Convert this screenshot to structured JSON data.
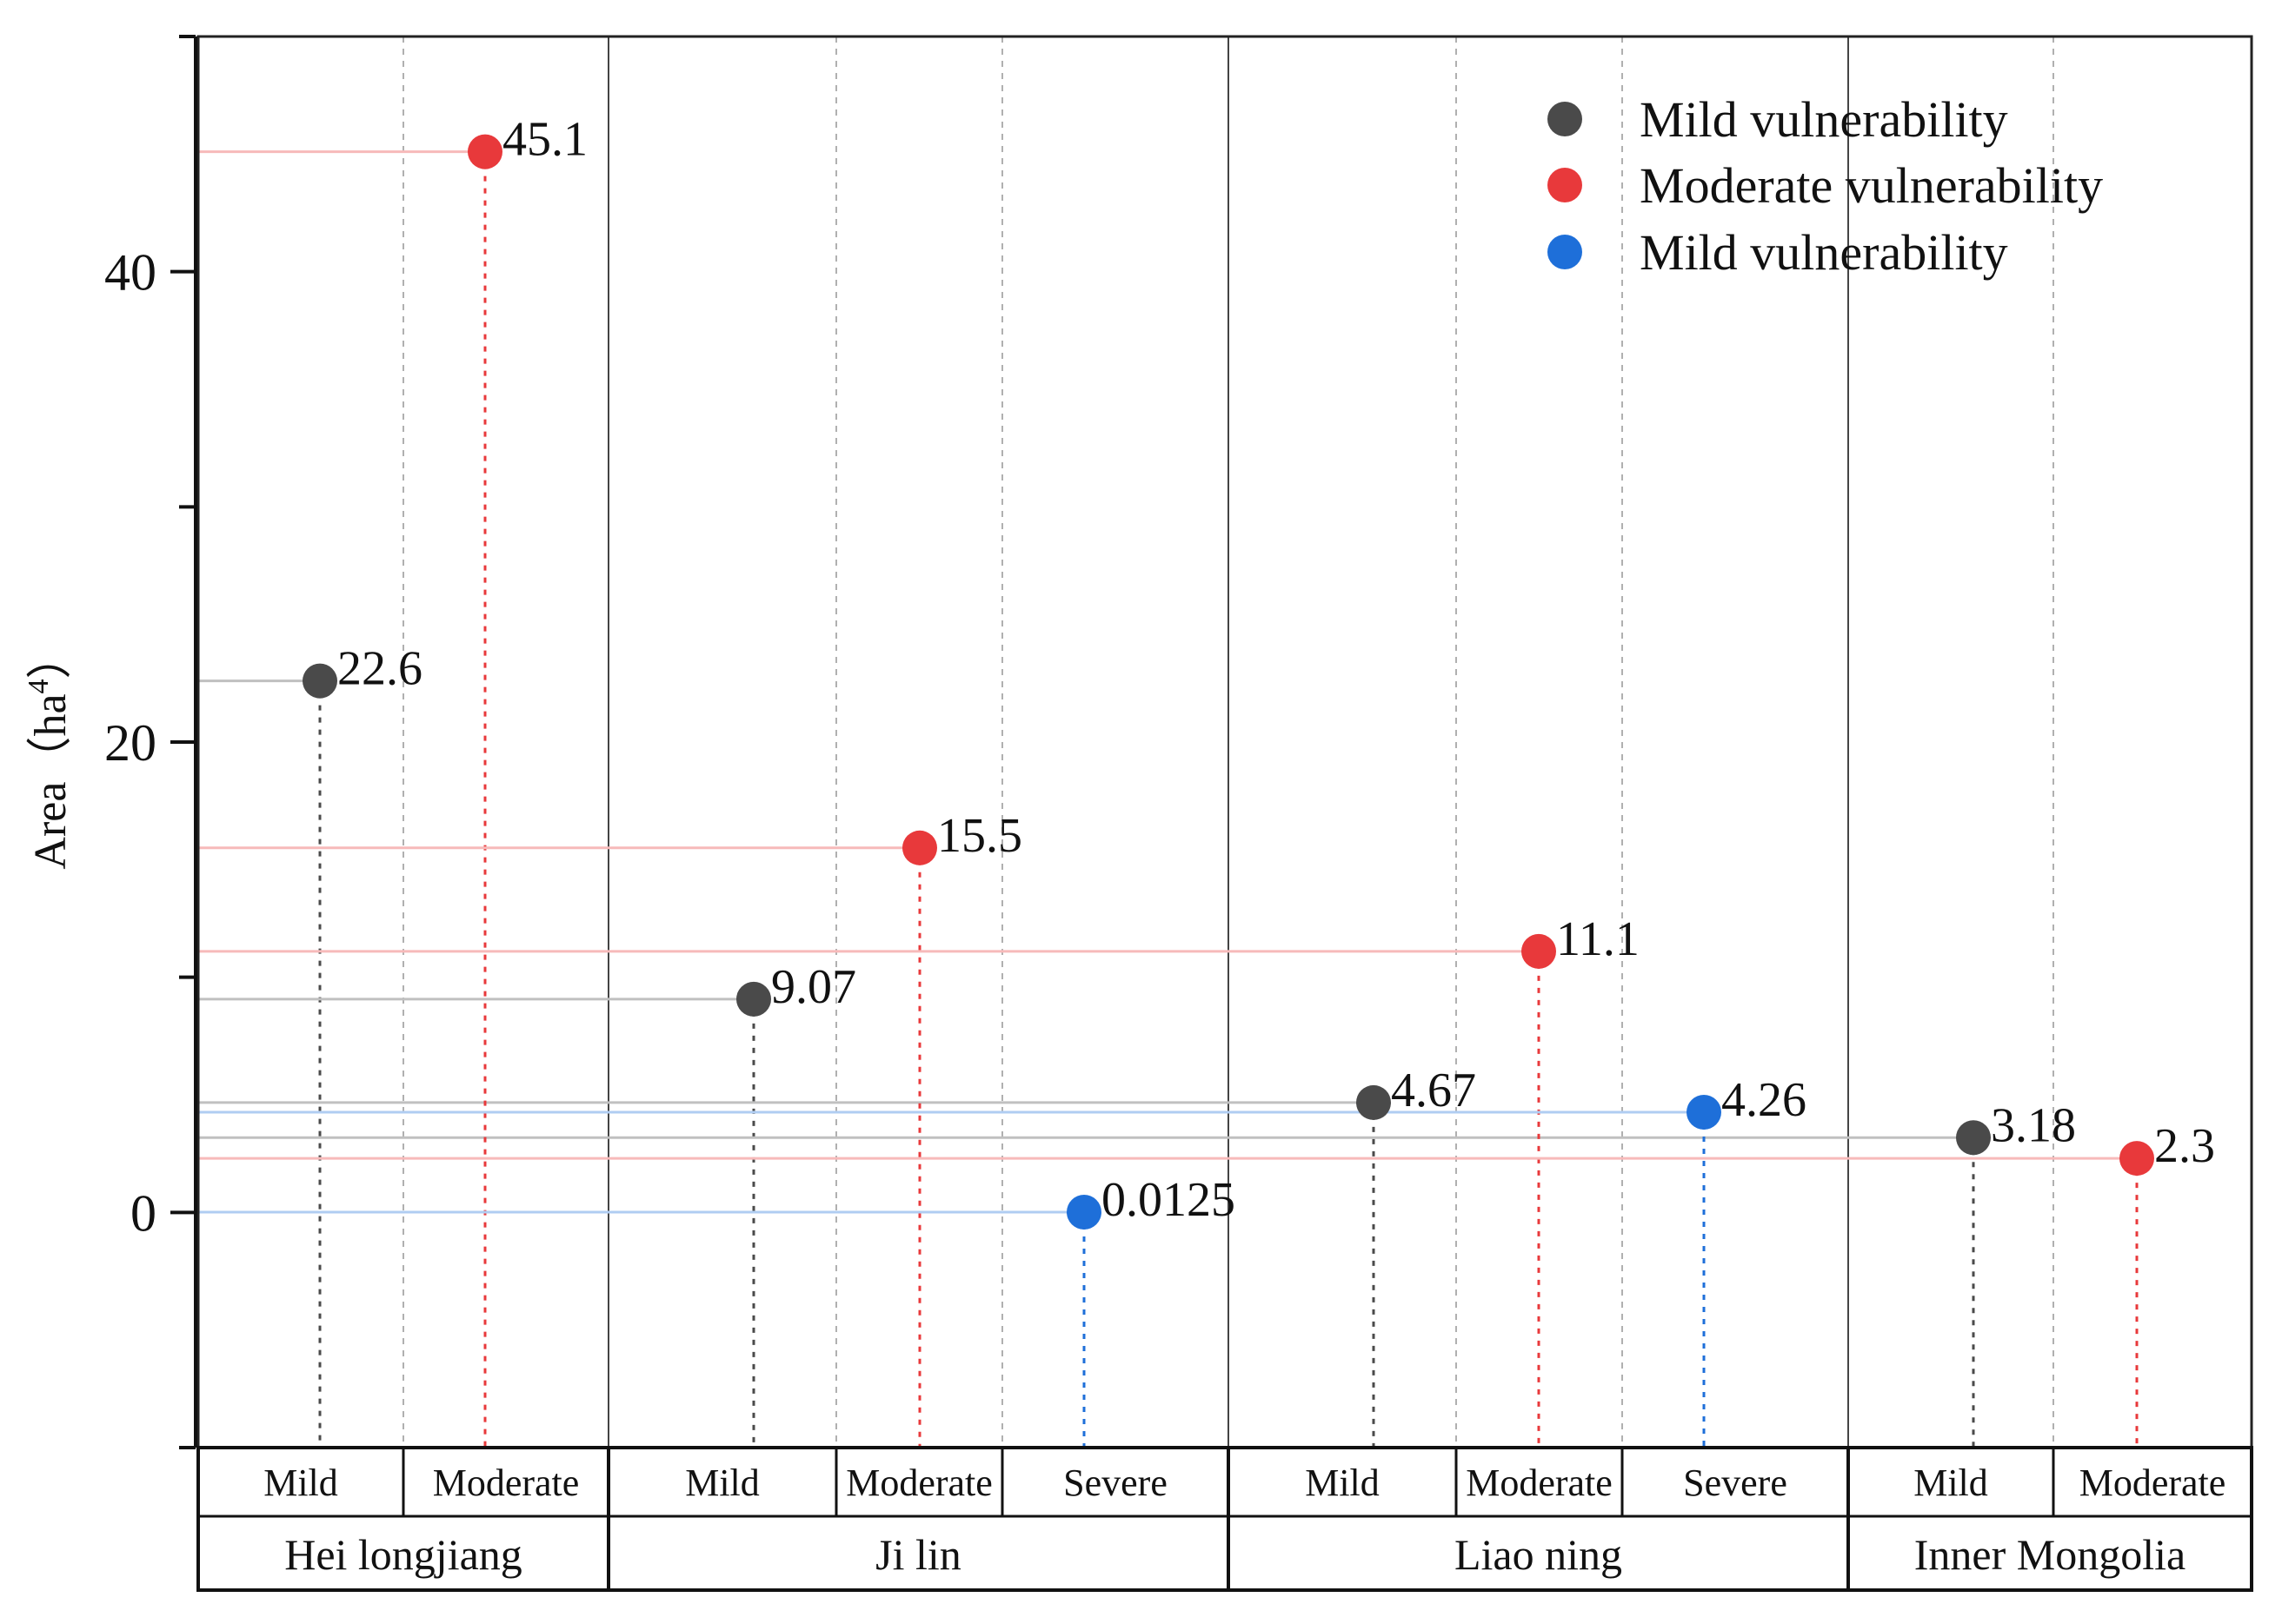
{
  "chart_data": {
    "type": "scatter",
    "title": "",
    "xlabel": "",
    "ylabel": "Area（ha",
    "ylabel_superscript": "4",
    "ylabel_close": "）",
    "ylim": [
      -10,
      50
    ],
    "yticks": [
      0,
      20,
      40
    ],
    "yticks_minor": [
      -10,
      10,
      30,
      50
    ],
    "grid": false,
    "legend_position": "top-right",
    "colors": {
      "mild": "#4a4a4a",
      "moderate": "#e8393b",
      "severe": "#1e6fd9"
    },
    "groups": [
      {
        "label": "Hei longjiang",
        "categories": [
          "Mild",
          "Moderate"
        ]
      },
      {
        "label": "Ji lin",
        "categories": [
          "Mild",
          "Moderate",
          "Severe"
        ]
      },
      {
        "label": "Liao ning",
        "categories": [
          "Mild",
          "Moderate",
          "Severe"
        ]
      },
      {
        "label": "Inner Mongolia",
        "categories": [
          "Mild",
          "Moderate"
        ]
      }
    ],
    "series": [
      {
        "name": "Mild vulnerability",
        "color_key": "mild",
        "points": [
          {
            "group": 0,
            "category": 0,
            "value": 22.6,
            "label": "22.6"
          },
          {
            "group": 1,
            "category": 0,
            "value": 9.07,
            "label": "9.07"
          },
          {
            "group": 2,
            "category": 0,
            "value": 4.67,
            "label": "4.67"
          },
          {
            "group": 3,
            "category": 0,
            "value": 3.18,
            "label": "3.18"
          }
        ]
      },
      {
        "name": "Moderate vulnerability",
        "color_key": "moderate",
        "points": [
          {
            "group": 0,
            "category": 1,
            "value": 45.1,
            "label": "45.1"
          },
          {
            "group": 1,
            "category": 1,
            "value": 15.5,
            "label": "15.5"
          },
          {
            "group": 2,
            "category": 1,
            "value": 11.1,
            "label": "11.1"
          },
          {
            "group": 3,
            "category": 1,
            "value": 2.3,
            "label": "2.3"
          }
        ]
      },
      {
        "name": "Mild vulnerability",
        "color_key": "severe",
        "points": [
          {
            "group": 1,
            "category": 2,
            "value": 0.0125,
            "label": "0.0125"
          },
          {
            "group": 2,
            "category": 2,
            "value": 4.26,
            "label": "4.26"
          }
        ]
      }
    ]
  }
}
